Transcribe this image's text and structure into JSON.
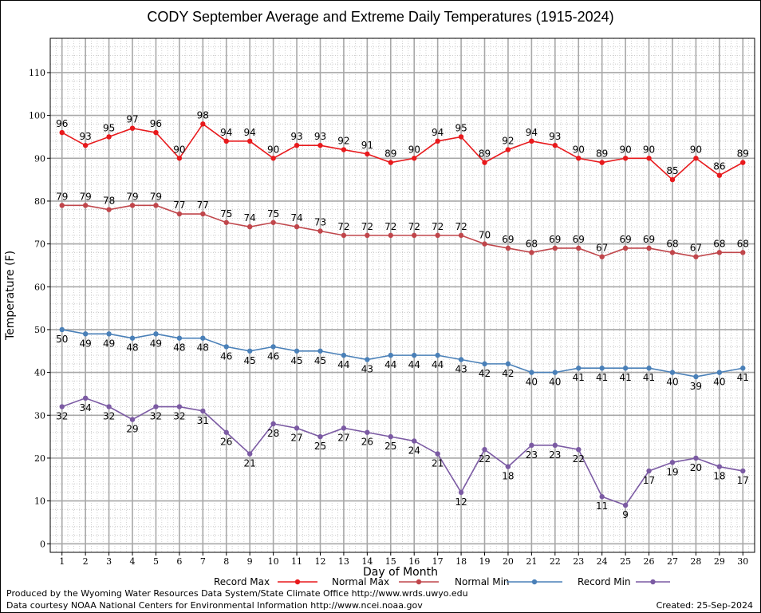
{
  "chart_data": {
    "type": "line",
    "title": "CODY September Average and Extreme Daily Temperatures (1915-2024)",
    "xlabel": "Day of Month",
    "ylabel": "Temperature (F)",
    "x": [
      1,
      2,
      3,
      4,
      5,
      6,
      7,
      8,
      9,
      10,
      11,
      12,
      13,
      14,
      15,
      16,
      17,
      18,
      19,
      20,
      21,
      22,
      23,
      24,
      25,
      26,
      27,
      28,
      29,
      30
    ],
    "xlim": [
      0.5,
      30.5
    ],
    "ylim": [
      -2,
      118
    ],
    "yticks": [
      0,
      10,
      20,
      30,
      40,
      50,
      60,
      70,
      80,
      90,
      100,
      110
    ],
    "grid": true,
    "legend_position": "bottom",
    "series": [
      {
        "name": "Record Max",
        "color": "#e8191c",
        "label_position": "above",
        "values": [
          96,
          93,
          95,
          97,
          96,
          90,
          98,
          94,
          94,
          90,
          93,
          93,
          92,
          91,
          89,
          90,
          94,
          95,
          89,
          92,
          94,
          93,
          90,
          89,
          90,
          90,
          85,
          90,
          86,
          89
        ]
      },
      {
        "name": "Normal Max",
        "color": "#c0464b",
        "label_position": "above",
        "values": [
          79,
          79,
          78,
          79,
          79,
          77,
          77,
          75,
          74,
          75,
          74,
          73,
          72,
          72,
          72,
          72,
          72,
          72,
          70,
          69,
          68,
          69,
          69,
          67,
          69,
          69,
          68,
          67,
          68,
          68
        ]
      },
      {
        "name": "Normal Min",
        "color": "#4a80b8",
        "label_position": "below",
        "values": [
          50,
          49,
          49,
          48,
          49,
          48,
          48,
          46,
          45,
          46,
          45,
          45,
          44,
          43,
          44,
          44,
          44,
          43,
          42,
          42,
          40,
          40,
          41,
          41,
          41,
          41,
          40,
          39,
          40,
          41
        ]
      },
      {
        "name": "Record Min",
        "color": "#7b5aa3",
        "label_position": "below",
        "values": [
          32,
          34,
          32,
          29,
          32,
          32,
          31,
          26,
          21,
          28,
          27,
          25,
          27,
          26,
          25,
          24,
          21,
          12,
          22,
          18,
          23,
          23,
          22,
          11,
          9,
          17,
          19,
          20,
          18,
          17
        ]
      }
    ]
  },
  "footer": {
    "produced_by": "Produced by the Wyoming Water Resources Data System/State Climate Office http://www.wrds.uwyo.edu",
    "data_courtesy": "Data courtesy NOAA National Centers for Environmental Information http://www.ncei.noaa.gov",
    "created": "Created:  25-Sep-2024"
  }
}
